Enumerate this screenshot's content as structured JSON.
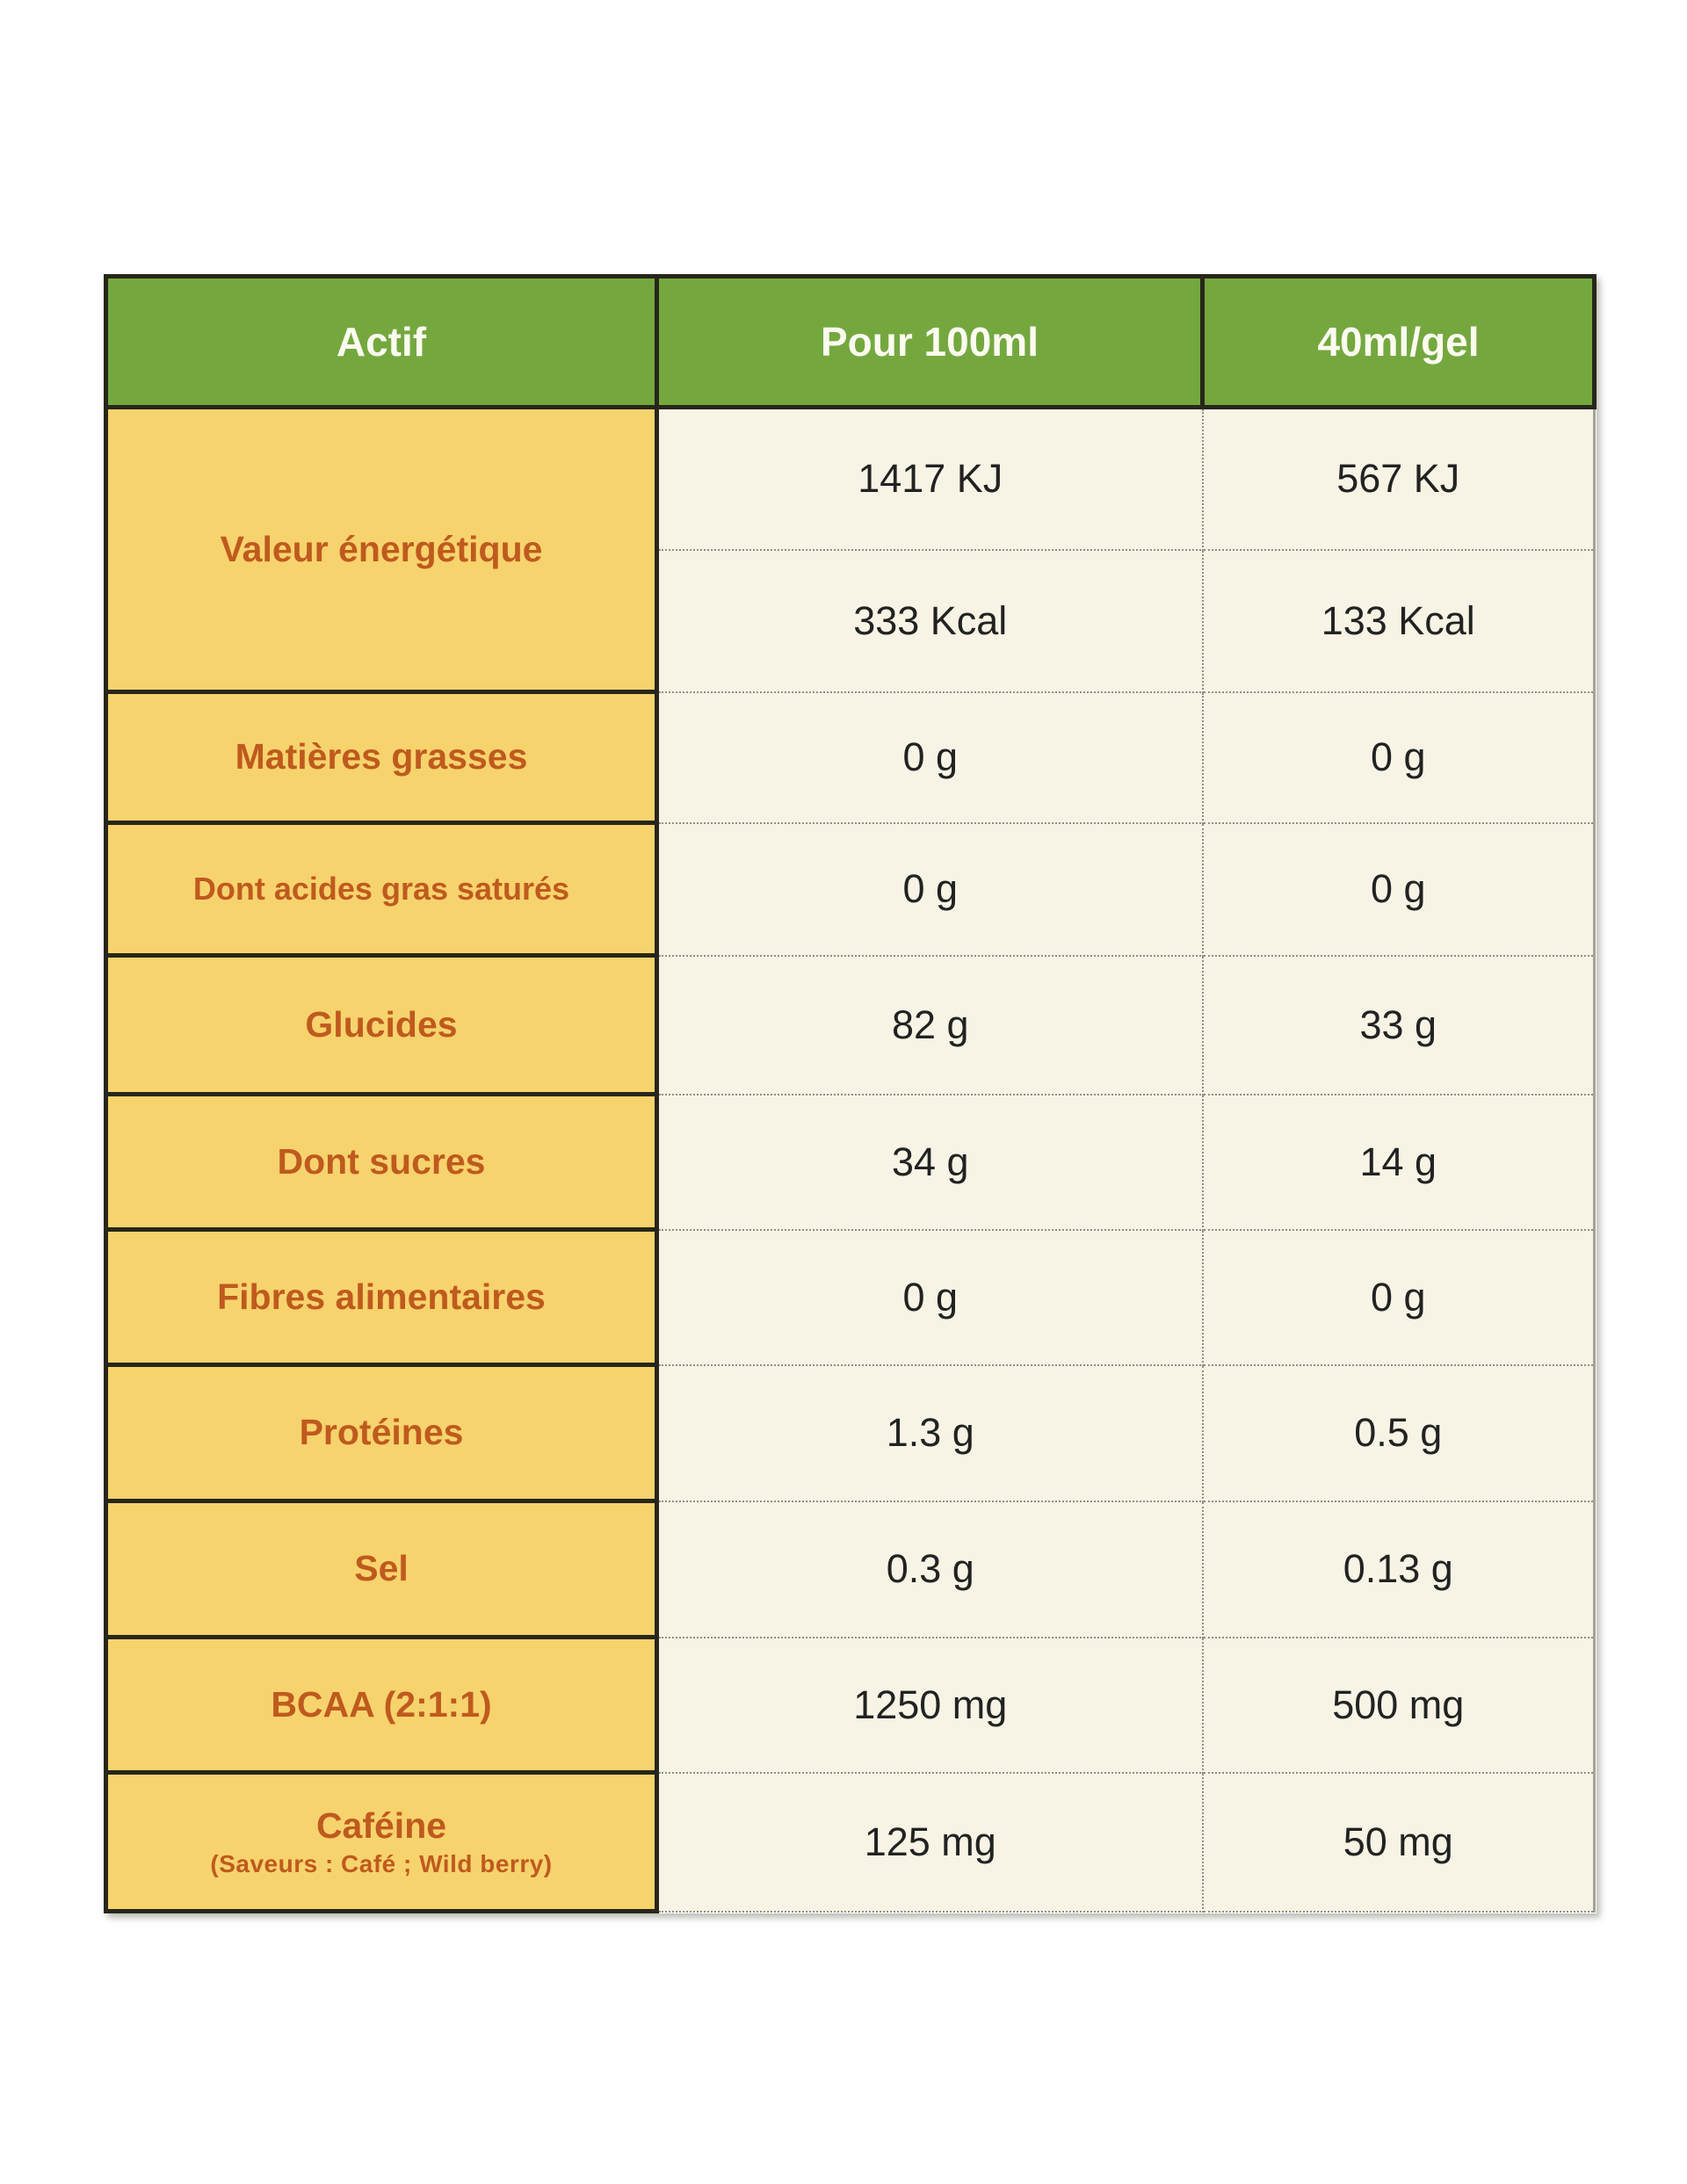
{
  "table": {
    "header": {
      "actif": "Actif",
      "per_100ml": "Pour 100ml",
      "per_gel": "40ml/gel"
    },
    "rows": {
      "energie": {
        "label": "Valeur énergétique",
        "kj_100ml": "1417 KJ",
        "kj_gel": "567 KJ",
        "kcal_100ml": "333 Kcal",
        "kcal_gel": "133 Kcal"
      },
      "matieres_grasses": {
        "label": "Matières grasses",
        "per_100ml": "0 g",
        "per_gel": "0 g"
      },
      "acides_gras_satures": {
        "label": "Dont acides gras saturés",
        "per_100ml": "0 g",
        "per_gel": "0 g"
      },
      "glucides": {
        "label": "Glucides",
        "per_100ml": "82 g",
        "per_gel": "33 g"
      },
      "sucres": {
        "label": "Dont sucres",
        "per_100ml": "34 g",
        "per_gel": "14 g"
      },
      "fibres": {
        "label": "Fibres alimentaires",
        "per_100ml": "0 g",
        "per_gel": "0 g"
      },
      "proteines": {
        "label": "Protéines",
        "per_100ml": "1.3 g",
        "per_gel": "0.5 g"
      },
      "sel": {
        "label": "Sel",
        "per_100ml": "0.3 g",
        "per_gel": "0.13 g"
      },
      "bcaa": {
        "label": "BCAA (2:1:1)",
        "per_100ml": "1250 mg",
        "per_gel": "500 mg"
      },
      "cafeine": {
        "label": "Caféine",
        "sublabel": "(Saveurs : Café ; Wild berry)",
        "per_100ml": "125 mg",
        "per_gel": "50 mg"
      }
    }
  },
  "chart_data": {
    "type": "table",
    "columns": [
      "Actif",
      "Pour 100ml",
      "40ml/gel"
    ],
    "rows": [
      [
        "Valeur énergétique",
        "1417 KJ",
        "567 KJ"
      ],
      [
        "Valeur énergétique",
        "333 Kcal",
        "133 Kcal"
      ],
      [
        "Matières grasses",
        "0 g",
        "0 g"
      ],
      [
        "Dont acides gras saturés",
        "0 g",
        "0 g"
      ],
      [
        "Glucides",
        "82 g",
        "33 g"
      ],
      [
        "Dont sucres",
        "34 g",
        "14 g"
      ],
      [
        "Fibres alimentaires",
        "0 g",
        "0 g"
      ],
      [
        "Protéines",
        "1.3 g",
        "0.5 g"
      ],
      [
        "Sel",
        "0.3 g",
        "0.13 g"
      ],
      [
        "BCAA (2:1:1)",
        "1250 mg",
        "500 mg"
      ],
      [
        "Caféine (Saveurs : Café ; Wild berry)",
        "125 mg",
        "50 mg"
      ]
    ]
  },
  "colors": {
    "header_green": "#74a83f",
    "header_text": "#fbfbf0",
    "label_yellow": "#f7d36d",
    "label_orange": "#bf5a1e",
    "cell_cream": "#f8f4e5",
    "border_dark": "#27261a",
    "dotted_gray": "#8f8f85",
    "edge_gray": "#a3a39a",
    "value_dark": "#222222"
  }
}
